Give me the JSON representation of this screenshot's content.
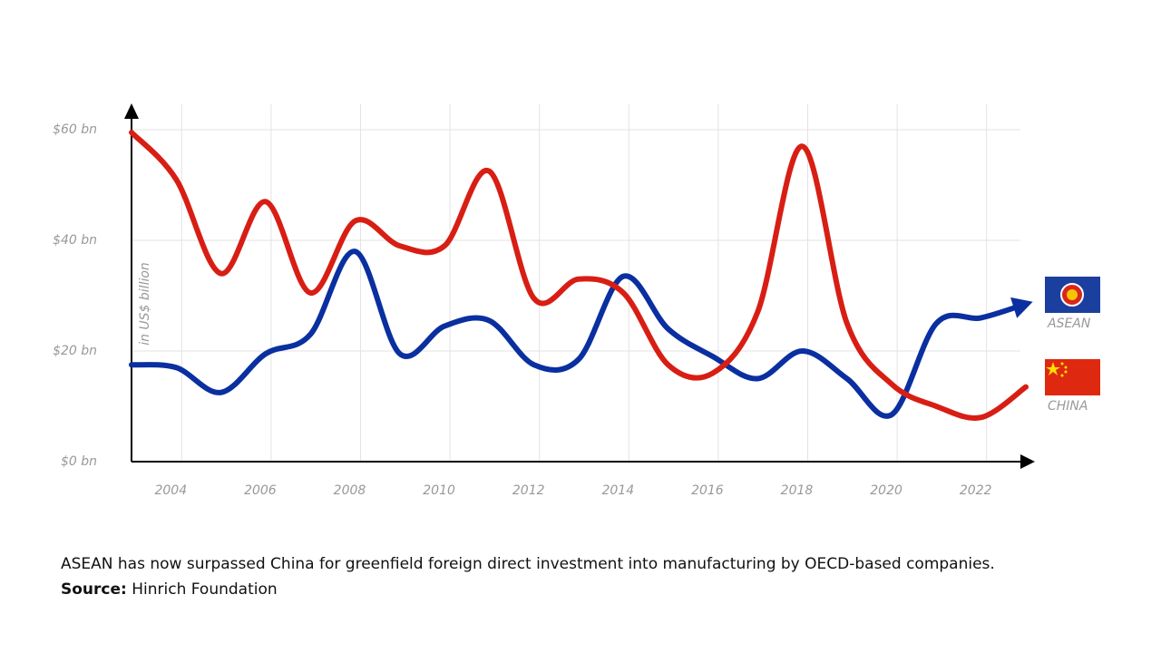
{
  "chart_data": {
    "type": "line",
    "y_label": "in US$ billion",
    "x": [
      2003,
      2004,
      2005,
      2006,
      2007,
      2008,
      2009,
      2010,
      2011,
      2012,
      2013,
      2014,
      2015,
      2016,
      2017,
      2018,
      2019,
      2020,
      2021,
      2022,
      2023
    ],
    "series": [
      {
        "name": "ASEAN",
        "color": "#0a2fa0",
        "values": [
          17.5,
          17,
          12.5,
          19.5,
          23,
          38,
          19.5,
          24.5,
          25.5,
          17.5,
          18.5,
          33.5,
          24,
          19,
          15,
          20,
          15,
          8.5,
          25,
          26,
          28.5
        ]
      },
      {
        "name": "CHINA",
        "color": "#d81e14",
        "values": [
          59.5,
          51,
          34,
          47,
          30.5,
          43.5,
          39,
          39,
          52.5,
          29.5,
          33,
          30.5,
          17.5,
          16,
          27,
          57,
          25,
          14,
          10,
          8,
          13.5
        ]
      }
    ],
    "xlim": [
      2003,
      2023
    ],
    "xticks": [
      2004,
      2006,
      2008,
      2010,
      2012,
      2014,
      2016,
      2018,
      2020,
      2022
    ],
    "ylim": [
      0,
      60
    ],
    "yticks": [
      {
        "value": 0,
        "label": "$0 bn"
      },
      {
        "value": 20,
        "label": "$20 bn"
      },
      {
        "value": 40,
        "label": "$40 bn"
      },
      {
        "value": 60,
        "label": "$60 bn"
      }
    ],
    "grid": true
  },
  "caption": "ASEAN has now surpassed China for greenfield foreign direct investment into manufacturing by OECD-based companies.",
  "source": {
    "label": "Source:",
    "text": "Hinrich Foundation"
  }
}
